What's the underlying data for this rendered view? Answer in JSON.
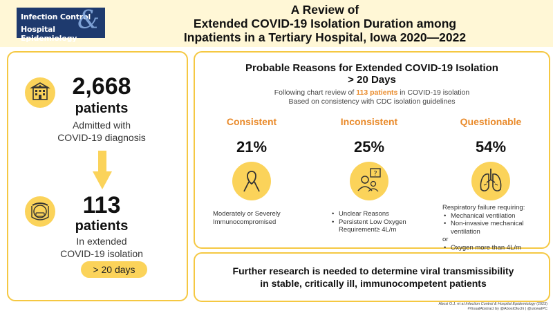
{
  "header": {
    "logo": {
      "line1": "Infection Control",
      "line2": "Hospital Epidemiology",
      "amp": "&"
    },
    "title_lines": [
      "A Review of",
      "Extended COVID-19 Isolation Duration among",
      "Inpatients in a Tertiary Hospital, Iowa 2020—2022"
    ]
  },
  "left": {
    "admitted": {
      "icon": "hospital-icon",
      "number": "2,668",
      "unit": "patients",
      "desc_lines": [
        "Admitted with",
        "COVID-19 diagnosis"
      ]
    },
    "isolated": {
      "icon": "face-shield-icon",
      "number": "113",
      "unit": "patients",
      "desc_lines": [
        "In extended",
        "COVID-19 isolation"
      ]
    },
    "duration_badge": "> 20 days"
  },
  "reasons": {
    "title_lines": [
      "Probable Reasons for Extended COVID-19 Isolation",
      "> 20 Days"
    ],
    "subtitle": {
      "prefix": "Following chart review of ",
      "highlight": "113 patients",
      "suffix": " in COVID-19 isolation",
      "line2": "Based on consistency with CDC isolation guidelines"
    },
    "categories": [
      {
        "title": "Consistent",
        "percent": "21%",
        "icon": "awareness-ribbon-icon",
        "note_lines": [
          "Moderately or Severely",
          "Immunocompromised"
        ]
      },
      {
        "title": "Inconsistent",
        "percent": "25%",
        "icon": "confused-person-icon",
        "bullets": [
          "Unclear Reasons",
          "Persistent Low Oxygen Requirement≥ 4L/m"
        ]
      },
      {
        "title": "Questionable",
        "percent": "54%",
        "icon": "lungs-icon",
        "intro": "Respiratory failure requiring:",
        "bullets": [
          "Mechanical ventilation",
          "Non-invasive mechanical ventilation"
        ],
        "or": "or",
        "bullets2": [
          "Oxygen more than 4L/m"
        ]
      }
    ]
  },
  "conclusion_lines": [
    "Further research is needed to determine viral transmissibility",
    "in stable, critically ill, immunocompetent patients"
  ],
  "footer": {
    "citation_prefix": "Abosi O.J. et al ",
    "journal": "Infection Control & Hospital Epidemiology",
    "year": " (2023)",
    "handles": "#VisualAbstract by @AbosiOluchi | @uiowaIPC"
  },
  "colors": {
    "accent_yellow": "#fbd35a",
    "border_yellow": "#f5c842",
    "orange": "#e98a2a",
    "header_bg": "#fff7d6",
    "logo_navy": "#1e3a6e"
  }
}
